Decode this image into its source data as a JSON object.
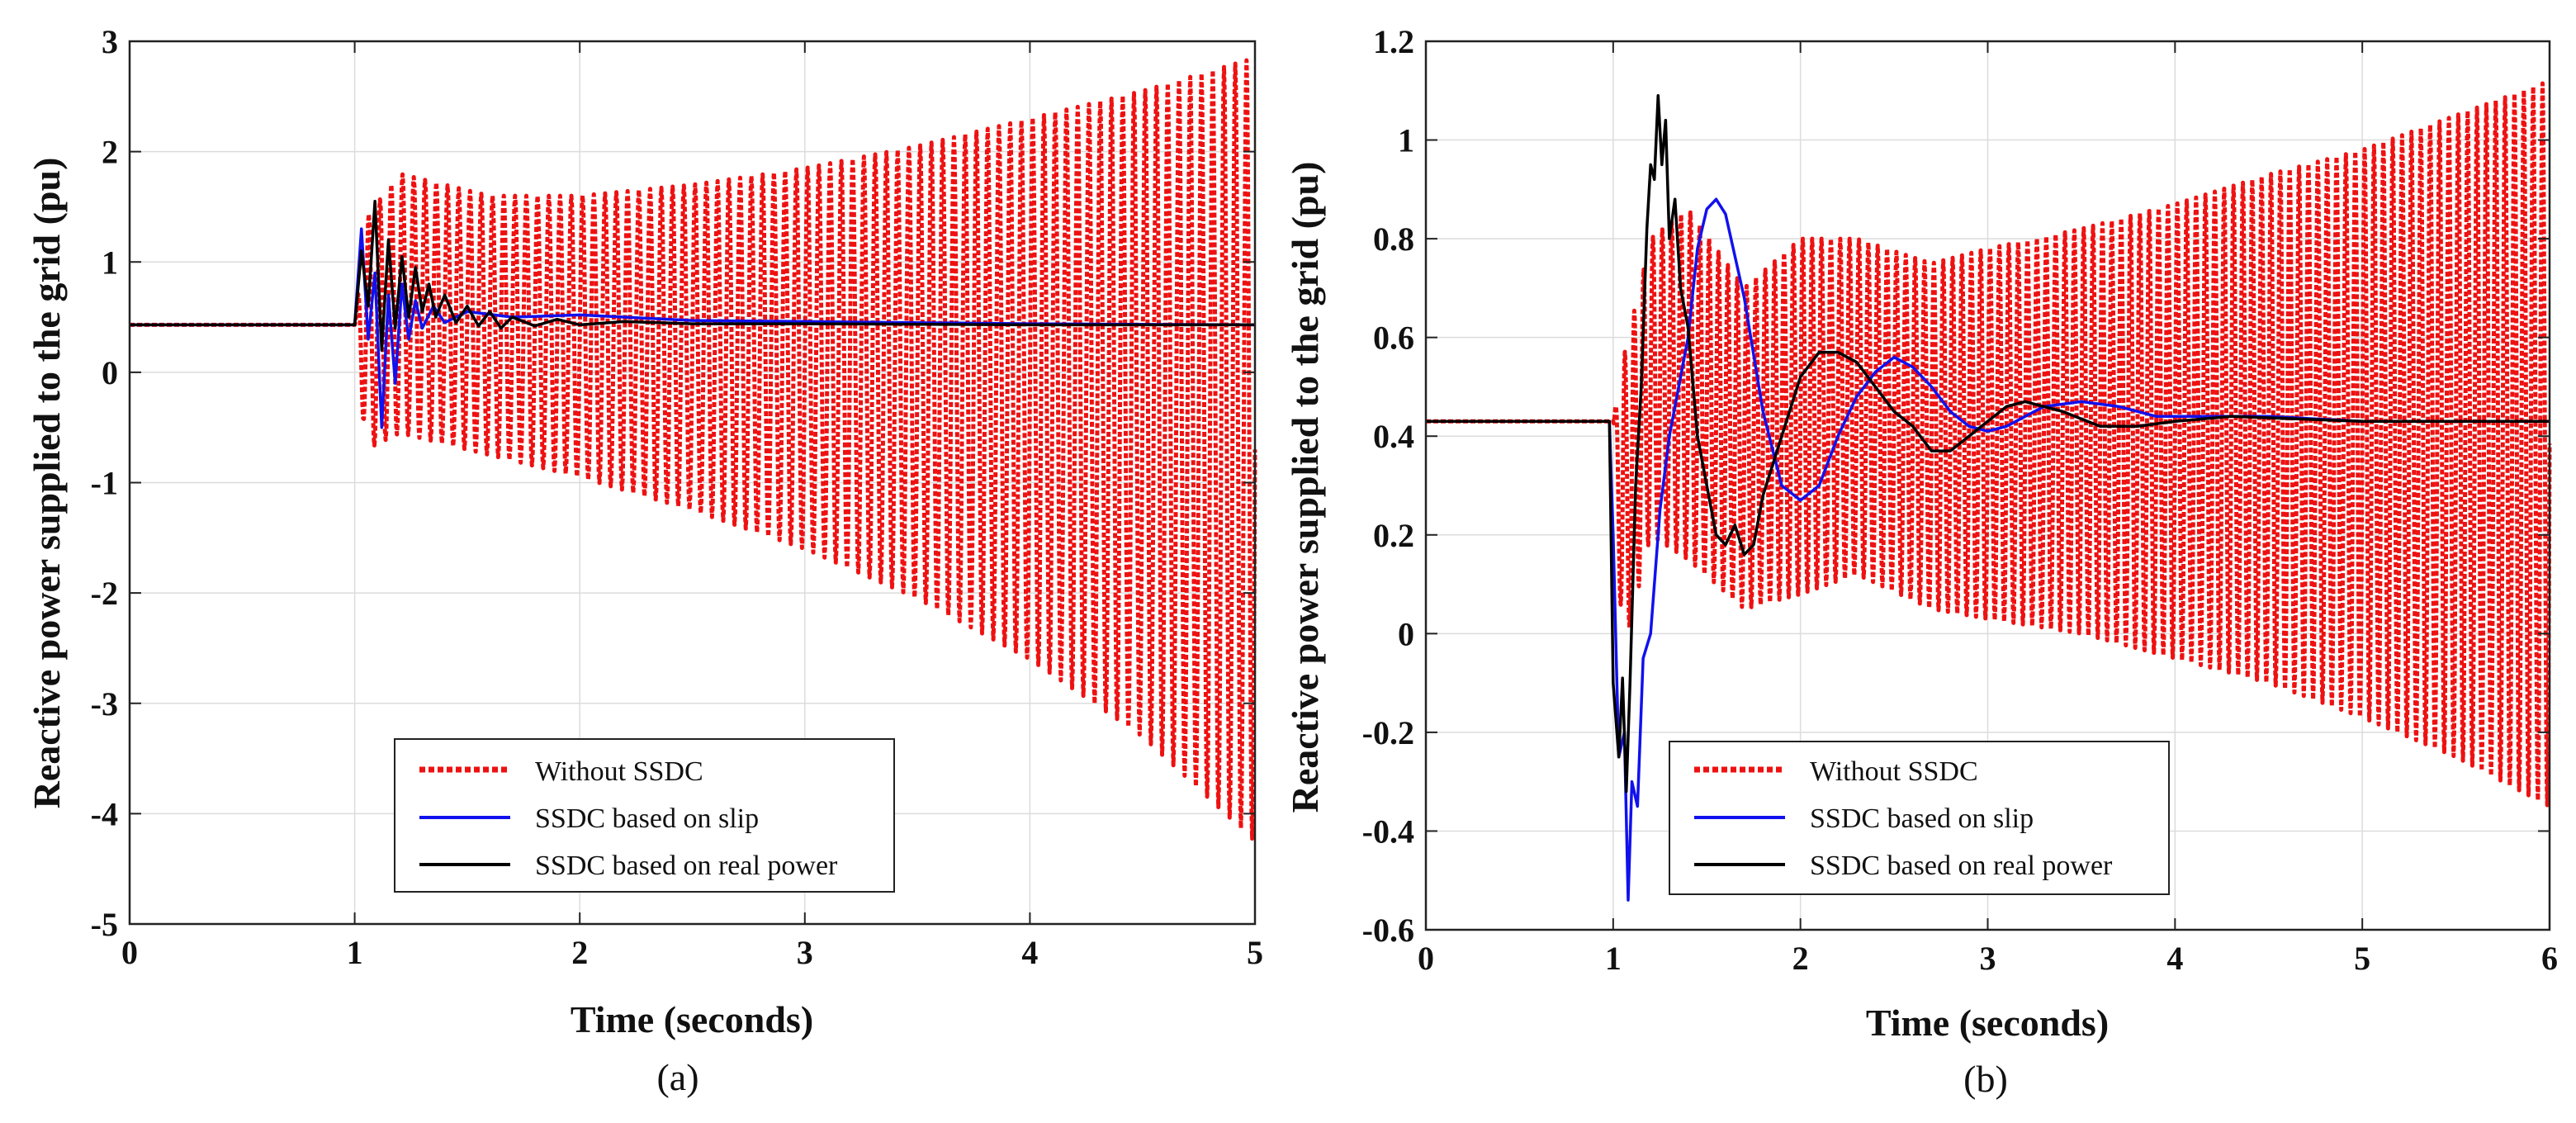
{
  "colors": {
    "without_ssdc": "#ee1111",
    "slip": "#1111ee",
    "real_power": "#000000",
    "grid": "#dcdcdc",
    "axis": "#222222"
  },
  "chart_data": [
    {
      "type": "line",
      "panel_label": "(a)",
      "xlabel": "Time (seconds)",
      "ylabel": "Reactive power supplied to the grid (pu)",
      "xlim": [
        0,
        5
      ],
      "ylim": [
        -5,
        3
      ],
      "xticks": [
        0,
        1,
        2,
        3,
        4,
        5
      ],
      "yticks": [
        -5,
        -4,
        -3,
        -2,
        -1,
        0,
        1,
        2,
        3
      ],
      "xtick_labels": [
        "0",
        "1",
        "2",
        "3",
        "4",
        "5"
      ],
      "ytick_labels": [
        "-5",
        "-4",
        "-3",
        "-2",
        "-1",
        "0",
        "1",
        "2",
        "3"
      ],
      "grid": true,
      "legend_position": "bottom-center",
      "series": [
        {
          "name": "Without SSDC",
          "style": "dotted",
          "color": "#ee1111",
          "baseline": 0.43,
          "step_time": 1.0,
          "oscillation_frequency_hz": 20,
          "upper_envelope": {
            "x": [
              1.0,
              1.05,
              1.2,
              1.6,
              2.0,
              2.5,
              3.0,
              3.5,
              4.0,
              4.5,
              5.0
            ],
            "y": [
              0.43,
              1.4,
              1.8,
              1.6,
              1.6,
              1.7,
              1.85,
              2.05,
              2.3,
              2.55,
              2.85
            ]
          },
          "lower_envelope": {
            "x": [
              1.0,
              1.05,
              1.2,
              1.6,
              2.0,
              2.5,
              3.0,
              3.5,
              4.0,
              4.5,
              5.0
            ],
            "y": [
              0.43,
              -0.7,
              -0.55,
              -0.75,
              -0.95,
              -1.25,
              -1.6,
              -2.05,
              -2.6,
              -3.3,
              -4.25
            ]
          }
        },
        {
          "name": "SSDC based on slip",
          "style": "solid",
          "color": "#1111ee",
          "x": [
            0,
            1.0,
            1.03,
            1.06,
            1.09,
            1.12,
            1.15,
            1.18,
            1.21,
            1.24,
            1.27,
            1.3,
            1.35,
            1.4,
            1.5,
            1.7,
            2.0,
            2.5,
            3.0,
            4.0,
            5.0
          ],
          "y": [
            0.43,
            0.43,
            1.3,
            0.3,
            0.9,
            -0.5,
            0.7,
            -0.1,
            0.8,
            0.3,
            0.65,
            0.4,
            0.6,
            0.45,
            0.55,
            0.5,
            0.52,
            0.47,
            0.46,
            0.44,
            0.43
          ]
        },
        {
          "name": "SSDC based on real power",
          "style": "solid",
          "color": "#000000",
          "x": [
            0,
            1.0,
            1.03,
            1.06,
            1.09,
            1.12,
            1.15,
            1.18,
            1.21,
            1.24,
            1.27,
            1.3,
            1.33,
            1.36,
            1.4,
            1.45,
            1.5,
            1.55,
            1.6,
            1.65,
            1.7,
            1.8,
            1.9,
            2.0,
            2.2,
            2.5,
            3.0,
            4.0,
            5.0
          ],
          "y": [
            0.43,
            0.43,
            1.1,
            0.6,
            1.55,
            0.2,
            1.2,
            0.4,
            1.05,
            0.5,
            0.95,
            0.55,
            0.8,
            0.5,
            0.7,
            0.45,
            0.6,
            0.42,
            0.55,
            0.4,
            0.5,
            0.42,
            0.48,
            0.43,
            0.46,
            0.44,
            0.44,
            0.43,
            0.43
          ]
        }
      ]
    },
    {
      "type": "line",
      "panel_label": "(b)",
      "xlabel": "Time (seconds)",
      "ylabel": "Reactive power supplied to the grid (pu)",
      "xlim": [
        0,
        6
      ],
      "ylim": [
        -0.6,
        1.2
      ],
      "xticks": [
        0,
        1,
        2,
        3,
        4,
        5,
        6
      ],
      "yticks": [
        -0.6,
        -0.4,
        -0.2,
        0,
        0.2,
        0.4,
        0.6,
        0.8,
        1.0,
        1.2
      ],
      "xtick_labels": [
        "0",
        "1",
        "2",
        "3",
        "4",
        "5",
        "6"
      ],
      "ytick_labels": [
        "-0.6",
        "-0.4",
        "-0.2",
        "0",
        "0.2",
        "0.4",
        "0.6",
        "0.8",
        "1",
        "1.2"
      ],
      "grid": true,
      "legend_position": "bottom-center",
      "series": [
        {
          "name": "Without SSDC",
          "style": "dotted",
          "color": "#ee1111",
          "baseline": 0.43,
          "step_time": 1.0,
          "oscillation_frequency_hz": 20,
          "upper_envelope": {
            "x": [
              1.0,
              1.05,
              1.2,
              1.4,
              1.7,
              2.0,
              2.3,
              2.7,
              3.0,
              3.5,
              4.0,
              4.5,
              5.0,
              5.5,
              6.0
            ],
            "y": [
              0.43,
              0.55,
              0.8,
              0.86,
              0.7,
              0.8,
              0.8,
              0.75,
              0.78,
              0.82,
              0.87,
              0.93,
              0.98,
              1.05,
              1.12
            ]
          },
          "lower_envelope": {
            "x": [
              1.0,
              1.05,
              1.2,
              1.4,
              1.7,
              2.0,
              2.3,
              2.7,
              3.0,
              3.5,
              4.0,
              4.5,
              5.0,
              5.5,
              6.0
            ],
            "y": [
              0.43,
              -0.05,
              0.2,
              0.15,
              0.05,
              0.08,
              0.12,
              0.05,
              0.03,
              0.0,
              -0.05,
              -0.1,
              -0.17,
              -0.25,
              -0.35
            ]
          }
        },
        {
          "name": "SSDC based on slip",
          "style": "solid",
          "color": "#1111ee",
          "x": [
            0,
            0.98,
            1.0,
            1.03,
            1.06,
            1.08,
            1.1,
            1.13,
            1.16,
            1.2,
            1.25,
            1.3,
            1.35,
            1.4,
            1.45,
            1.5,
            1.55,
            1.6,
            1.7,
            1.8,
            1.9,
            2.0,
            2.1,
            2.2,
            2.3,
            2.4,
            2.5,
            2.6,
            2.7,
            2.8,
            2.9,
            3.0,
            3.1,
            3.3,
            3.5,
            3.7,
            3.9,
            4.1,
            4.5,
            5.0,
            6.0
          ],
          "y": [
            0.43,
            0.43,
            0.2,
            -0.25,
            -0.2,
            -0.54,
            -0.3,
            -0.35,
            -0.05,
            0.0,
            0.25,
            0.4,
            0.5,
            0.6,
            0.78,
            0.86,
            0.88,
            0.85,
            0.68,
            0.45,
            0.3,
            0.27,
            0.3,
            0.4,
            0.48,
            0.53,
            0.56,
            0.54,
            0.5,
            0.45,
            0.42,
            0.41,
            0.42,
            0.46,
            0.47,
            0.46,
            0.44,
            0.44,
            0.44,
            0.43,
            0.43
          ]
        },
        {
          "name": "SSDC based on real power",
          "style": "solid",
          "color": "#000000",
          "x": [
            0,
            0.98,
            1.0,
            1.03,
            1.05,
            1.07,
            1.09,
            1.12,
            1.15,
            1.18,
            1.2,
            1.22,
            1.24,
            1.26,
            1.28,
            1.3,
            1.33,
            1.36,
            1.4,
            1.45,
            1.5,
            1.55,
            1.6,
            1.65,
            1.7,
            1.75,
            1.8,
            1.9,
            2.0,
            2.1,
            2.2,
            2.3,
            2.4,
            2.5,
            2.6,
            2.7,
            2.8,
            2.9,
            3.0,
            3.1,
            3.2,
            3.4,
            3.6,
            3.8,
            4.0,
            4.3,
            5.0,
            6.0
          ],
          "y": [
            0.43,
            0.43,
            -0.1,
            -0.25,
            -0.09,
            -0.32,
            -0.1,
            0.3,
            0.5,
            0.82,
            0.95,
            0.92,
            1.09,
            0.95,
            1.04,
            0.8,
            0.88,
            0.7,
            0.62,
            0.4,
            0.3,
            0.2,
            0.18,
            0.22,
            0.16,
            0.18,
            0.28,
            0.4,
            0.52,
            0.57,
            0.57,
            0.55,
            0.5,
            0.45,
            0.42,
            0.37,
            0.37,
            0.4,
            0.43,
            0.46,
            0.47,
            0.45,
            0.42,
            0.42,
            0.43,
            0.44,
            0.43,
            0.43
          ]
        }
      ]
    }
  ]
}
